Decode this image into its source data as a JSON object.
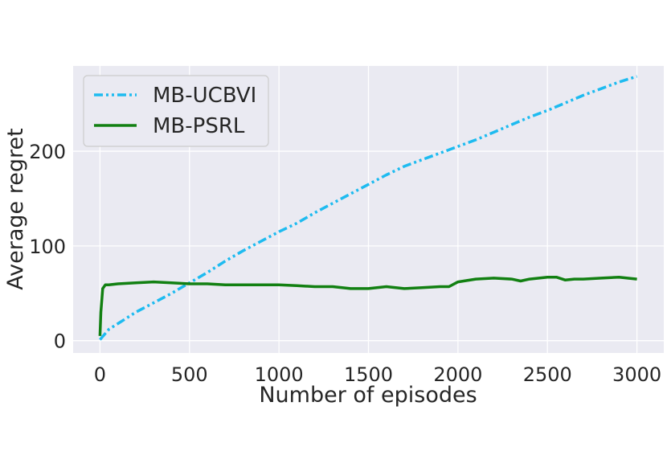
{
  "chart_data": {
    "type": "line",
    "title": "",
    "xlabel": "Number of episodes",
    "ylabel": "Average regret",
    "xlim": [
      -150,
      3150
    ],
    "ylim": [
      -13,
      290
    ],
    "xticks": [
      0,
      500,
      1000,
      1500,
      2000,
      2500,
      3000
    ],
    "xtick_labels": [
      "0",
      "500",
      "1000",
      "1500",
      "2000",
      "2500",
      "3000"
    ],
    "yticks": [
      0,
      100,
      200
    ],
    "ytick_labels": [
      "0",
      "100",
      "200"
    ],
    "grid": true,
    "background": "#eaeaf2",
    "legend_position": "top-left",
    "series": [
      {
        "name": "MB-UCBVI",
        "color": "#1ebbf0",
        "style": "dash-dot-dot",
        "x": [
          0,
          50,
          100,
          200,
          300,
          400,
          500,
          600,
          700,
          800,
          900,
          1000,
          1100,
          1200,
          1300,
          1400,
          1500,
          1600,
          1700,
          1800,
          1900,
          2000,
          2100,
          2200,
          2300,
          2400,
          2500,
          2600,
          2700,
          2800,
          2900,
          3000
        ],
        "y": [
          1,
          12,
          18,
          30,
          40,
          50,
          61,
          72,
          84,
          95,
          105,
          115,
          124,
          135,
          145,
          155,
          165,
          175,
          184,
          191,
          198,
          205,
          212,
          220,
          228,
          236,
          243,
          251,
          259,
          266,
          273,
          279
        ]
      },
      {
        "name": "MB-PSRL",
        "color": "#128012",
        "style": "solid",
        "x": [
          0,
          5,
          15,
          30,
          50,
          100,
          200,
          300,
          400,
          500,
          600,
          700,
          800,
          900,
          1000,
          1100,
          1200,
          1300,
          1400,
          1500,
          1600,
          1700,
          1800,
          1900,
          1950,
          2000,
          2100,
          2200,
          2300,
          2350,
          2400,
          2500,
          2550,
          2600,
          2650,
          2700,
          2800,
          2900,
          3000
        ],
        "y": [
          5,
          30,
          55,
          59,
          59,
          60,
          61,
          62,
          61,
          60,
          60,
          59,
          59,
          59,
          59,
          58,
          57,
          57,
          55,
          55,
          57,
          55,
          56,
          57,
          57,
          62,
          65,
          66,
          65,
          63,
          65,
          67,
          67,
          64,
          65,
          65,
          66,
          67,
          65
        ]
      }
    ]
  }
}
